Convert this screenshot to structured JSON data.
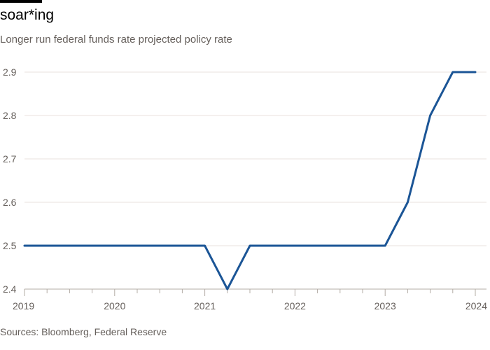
{
  "header": {
    "title": "soar*ing",
    "subtitle": "Longer run federal funds rate projected policy rate"
  },
  "footer": {
    "source": "Sources: Bloomberg, Federal Reserve"
  },
  "colors": {
    "line": "#1b5596",
    "grid": "#e8e2dc",
    "axis": "#b3aca5",
    "text_muted": "#66605c"
  },
  "chart_data": {
    "type": "line",
    "title": "soar*ing",
    "subtitle": "Longer run federal funds rate projected policy rate",
    "xlabel": "",
    "ylabel": "",
    "xlim": [
      2019.0,
      2024.0
    ],
    "ylim": [
      2.4,
      2.9
    ],
    "x_ticks": [
      2019,
      2020,
      2021,
      2022,
      2023,
      2024
    ],
    "x_tick_labels": [
      "2019",
      "2020",
      "2021",
      "2022",
      "2023",
      "2024"
    ],
    "y_ticks": [
      2.4,
      2.5,
      2.6,
      2.7,
      2.8,
      2.9
    ],
    "y_tick_labels": [
      "2.4",
      "2.5",
      "2.6",
      "2.7",
      "2.8",
      "2.9"
    ],
    "grid": true,
    "series": [
      {
        "name": "Longer run federal funds rate projected policy rate",
        "x": [
          2019.0,
          2020.0,
          2021.0,
          2021.25,
          2021.5,
          2022.0,
          2023.0,
          2023.25,
          2023.5,
          2023.75,
          2024.0
        ],
        "y": [
          2.5,
          2.5,
          2.5,
          2.4,
          2.5,
          2.5,
          2.5,
          2.6,
          2.8,
          2.9,
          2.9
        ]
      }
    ]
  }
}
